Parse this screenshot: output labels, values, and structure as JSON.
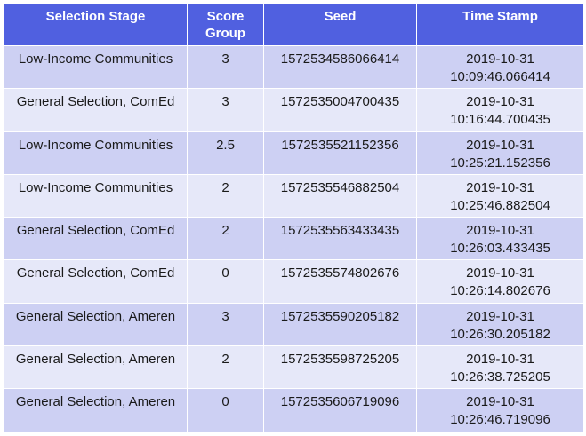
{
  "table": {
    "headers": {
      "stage": "Selection Stage",
      "score_line1": "Score",
      "score_line2": "Group",
      "seed": "Seed",
      "timestamp": "Time Stamp"
    },
    "rows": [
      {
        "stage": "Low-Income Communities",
        "score": "3",
        "seed": "1572534586066414",
        "date": "2019-10-31",
        "time": "10:09:46.066414"
      },
      {
        "stage": "General Selection, ComEd",
        "score": "3",
        "seed": "1572535004700435",
        "date": "2019-10-31",
        "time": "10:16:44.700435"
      },
      {
        "stage": "Low-Income Communities",
        "score": "2.5",
        "seed": "1572535521152356",
        "date": "2019-10-31",
        "time": "10:25:21.152356"
      },
      {
        "stage": "Low-Income Communities",
        "score": "2",
        "seed": "1572535546882504",
        "date": "2019-10-31",
        "time": "10:25:46.882504"
      },
      {
        "stage": "General Selection, ComEd",
        "score": "2",
        "seed": "1572535563433435",
        "date": "2019-10-31",
        "time": "10:26:03.433435"
      },
      {
        "stage": "General Selection, ComEd",
        "score": "0",
        "seed": "1572535574802676",
        "date": "2019-10-31",
        "time": "10:26:14.802676"
      },
      {
        "stage": "General Selection, Ameren",
        "score": "3",
        "seed": "1572535590205182",
        "date": "2019-10-31",
        "time": "10:26:30.205182"
      },
      {
        "stage": "General Selection, Ameren",
        "score": "2",
        "seed": "1572535598725205",
        "date": "2019-10-31",
        "time": "10:26:38.725205"
      },
      {
        "stage": "General Selection, Ameren",
        "score": "0",
        "seed": "1572535606719096",
        "date": "2019-10-31",
        "time": "10:26:46.719096"
      }
    ]
  },
  "colors": {
    "header_bg": "#5060e0",
    "row_dark": "#cdd0f3",
    "row_light": "#e6e8f9"
  }
}
